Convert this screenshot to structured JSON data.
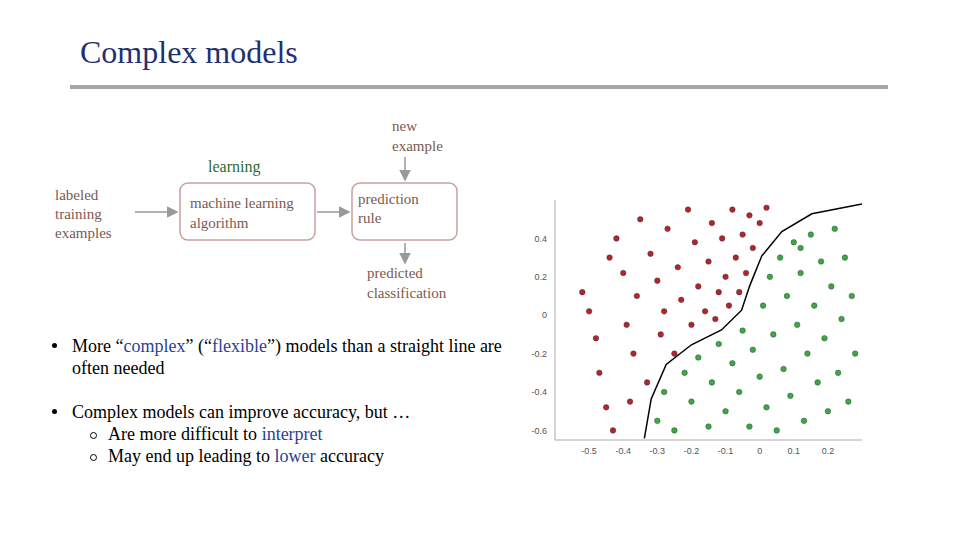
{
  "title": "Complex models",
  "diagram": {
    "label": "learning",
    "input": [
      "labeled",
      "training",
      "examples"
    ],
    "algorithm": [
      "machine learning",
      "algorithm"
    ],
    "rule": [
      "prediction",
      "rule"
    ],
    "new": [
      "new",
      "example"
    ],
    "output": [
      "predicted",
      "classification"
    ]
  },
  "bullets": [
    {
      "segments": [
        {
          "text": "More “"
        },
        {
          "text": "complex",
          "em": true
        },
        {
          "text": "” (“"
        },
        {
          "text": "flexible",
          "em": true
        },
        {
          "text": "”) models than a straight line are often needed"
        }
      ],
      "sub": []
    },
    {
      "segments": [
        {
          "text": "Complex models can improve accuracy, but …"
        }
      ],
      "sub": [
        [
          {
            "text": "Are more difficult to "
          },
          {
            "text": "interpret",
            "em": true
          }
        ],
        [
          {
            "text": "May end up leading to "
          },
          {
            "text": "lower",
            "em": true
          },
          {
            "text": " accuracy"
          }
        ]
      ]
    }
  ],
  "chart_data": {
    "type": "scatter",
    "xlim": [
      -0.6,
      0.3
    ],
    "ylim": [
      -0.65,
      0.6
    ],
    "xticks": [
      -0.5,
      -0.4,
      -0.3,
      -0.2,
      -0.1,
      0,
      0.1,
      0.2
    ],
    "yticks": [
      -0.6,
      -0.4,
      -0.2,
      0,
      0.2,
      0.4
    ],
    "grid": false,
    "series": [
      {
        "color": "#b3242b",
        "marker": "circle",
        "x": [
          -0.52,
          -0.5,
          -0.48,
          -0.47,
          -0.45,
          -0.44,
          -0.42,
          -0.4,
          -0.39,
          -0.37,
          -0.36,
          -0.35,
          -0.33,
          -0.32,
          -0.3,
          -0.29,
          -0.28,
          -0.27,
          -0.25,
          -0.24,
          -0.23,
          -0.21,
          -0.2,
          -0.19,
          -0.18,
          -0.16,
          -0.15,
          -0.14,
          -0.13,
          -0.12,
          -0.11,
          -0.1,
          -0.09,
          -0.08,
          -0.07,
          -0.06,
          -0.05,
          -0.04,
          -0.03,
          -0.02,
          0.0,
          0.02,
          -0.43,
          -0.38
        ],
        "y": [
          0.12,
          0.02,
          -0.12,
          -0.3,
          -0.48,
          0.3,
          0.4,
          0.22,
          -0.05,
          -0.2,
          0.1,
          0.5,
          -0.35,
          0.32,
          0.18,
          -0.1,
          0.02,
          0.45,
          -0.2,
          0.25,
          0.08,
          0.55,
          -0.05,
          0.38,
          0.15,
          0.02,
          0.28,
          0.48,
          -0.02,
          0.12,
          0.4,
          0.2,
          0.05,
          0.55,
          0.3,
          0.12,
          0.42,
          0.22,
          0.52,
          0.35,
          0.48,
          0.56,
          -0.6,
          -0.45
        ]
      },
      {
        "color": "#3aa845",
        "marker": "circle",
        "x": [
          -0.3,
          -0.28,
          -0.25,
          -0.22,
          -0.2,
          -0.18,
          -0.15,
          -0.14,
          -0.12,
          -0.1,
          -0.08,
          -0.06,
          -0.05,
          -0.03,
          -0.02,
          0.0,
          0.01,
          0.02,
          0.03,
          0.04,
          0.05,
          0.06,
          0.07,
          0.08,
          0.09,
          0.1,
          0.11,
          0.12,
          0.13,
          0.14,
          0.15,
          0.16,
          0.17,
          0.18,
          0.19,
          0.2,
          0.21,
          0.22,
          0.23,
          0.24,
          0.25,
          0.26,
          0.27,
          0.28,
          0.12
        ],
        "y": [
          -0.55,
          -0.4,
          -0.6,
          -0.3,
          -0.45,
          -0.22,
          -0.58,
          -0.35,
          -0.15,
          -0.5,
          -0.25,
          -0.4,
          -0.08,
          -0.58,
          -0.18,
          -0.32,
          0.05,
          -0.48,
          0.2,
          -0.1,
          -0.6,
          0.3,
          -0.28,
          0.1,
          -0.42,
          0.38,
          -0.05,
          0.22,
          -0.55,
          -0.2,
          0.42,
          0.05,
          -0.35,
          0.28,
          -0.12,
          -0.5,
          0.15,
          0.45,
          -0.3,
          -0.02,
          0.3,
          -0.45,
          0.1,
          -0.2,
          0.35
        ]
      },
      {
        "type": "line",
        "color": "#000000",
        "line_style": "solid",
        "x": [
          -0.338,
          -0.318,
          -0.274,
          -0.2,
          -0.112,
          -0.053,
          -0.029,
          0.006,
          0.065,
          0.153,
          0.3
        ],
        "y": [
          -0.641,
          -0.436,
          -0.256,
          -0.154,
          -0.077,
          0.026,
          0.154,
          0.308,
          0.436,
          0.528,
          0.579
        ]
      }
    ]
  }
}
